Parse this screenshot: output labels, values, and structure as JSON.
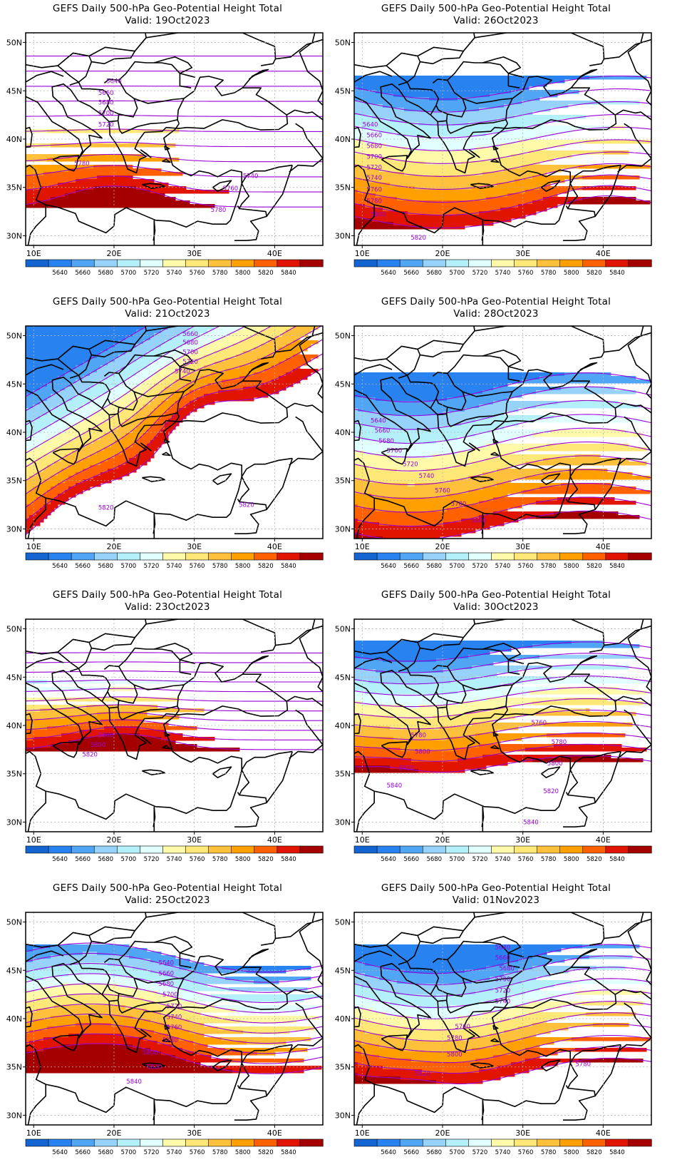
{
  "colorbar": {
    "labels": [
      "5640",
      "5660",
      "5680",
      "5700",
      "5720",
      "5740",
      "5760",
      "5780",
      "5800",
      "5820",
      "5840"
    ],
    "colors": [
      "#1464d2",
      "#2882f0",
      "#50a5f5",
      "#96d2fa",
      "#b4f0fa",
      "#e1ffff",
      "#fffaaa",
      "#ffe878",
      "#ffc03c",
      "#ffa000",
      "#ff6000",
      "#e11400",
      "#a50000"
    ]
  },
  "axes": {
    "lon_ticks": [
      "10E",
      "20E",
      "30E",
      "40E"
    ],
    "lat_ticks": [
      "50N",
      "45N",
      "40N",
      "35N",
      "30N"
    ],
    "lon_range": [
      9,
      46
    ],
    "lat_range": [
      29,
      51
    ]
  },
  "contour_color": "#9a00d8",
  "grid": "dotted",
  "panels": [
    {
      "title": "GEFS Daily 500-hPa Geo-Potential Height Total",
      "valid": "Valid: 19Oct2023",
      "field": {
        "a": 5750,
        "s": 12.8,
        "ao": 0,
        "ap": 35,
        "ax": 20,
        "b": [
          {
            "x": 20,
            "y": 29,
            "r": 7,
            "a": 60
          }
        ],
        "q": 0
      },
      "labels": [
        {
          "t": "5640",
          "lon": 20,
          "lat": 46
        },
        {
          "t": "5660",
          "lon": 19,
          "lat": 44.8
        },
        {
          "t": "5680",
          "lon": 19,
          "lat": 43.8
        },
        {
          "t": "5700",
          "lon": 19,
          "lat": 42.7
        },
        {
          "t": "5720",
          "lon": 19,
          "lat": 41.5
        },
        {
          "t": "5780",
          "lon": 16,
          "lat": 37.5
        },
        {
          "t": "5740",
          "lon": 37,
          "lat": 36.2
        },
        {
          "t": "5760",
          "lon": 34.5,
          "lat": 34.9
        },
        {
          "t": "5780",
          "lon": 33,
          "lat": 32.7
        }
      ]
    },
    {
      "title": "GEFS Daily 500-hPa Geo-Potential Height Total",
      "valid": "Valid: 26Oct2023",
      "field": {
        "a": 5720,
        "s": 15,
        "ao": 1.2,
        "ap": 6,
        "ax": 9,
        "b": [
          {
            "x": 40,
            "y": 29,
            "r": 6,
            "a": 30
          }
        ],
        "q": 0
      },
      "labels": [
        {
          "t": "5640",
          "lon": 11,
          "lat": 41.5
        },
        {
          "t": "5660",
          "lon": 11.5,
          "lat": 40.4
        },
        {
          "t": "5680",
          "lon": 11.5,
          "lat": 39.3
        },
        {
          "t": "5700",
          "lon": 11.5,
          "lat": 38.2
        },
        {
          "t": "5720",
          "lon": 11.5,
          "lat": 37.1
        },
        {
          "t": "5740",
          "lon": 11.5,
          "lat": 36
        },
        {
          "t": "5760",
          "lon": 11.5,
          "lat": 34.8
        },
        {
          "t": "5780",
          "lon": 11.5,
          "lat": 33.6
        },
        {
          "t": "5800",
          "lon": 12,
          "lat": 32.2
        },
        {
          "t": "5820",
          "lon": 17,
          "lat": 29.8
        }
      ]
    },
    {
      "title": "GEFS Daily 500-hPa Geo-Potential Height Total",
      "valid": "Valid: 21Oct2023",
      "field": {
        "a": 5690,
        "s": 13.5,
        "ao": 0,
        "ap": 30,
        "ax": 10,
        "b": [
          {
            "x": 31,
            "y": 40.5,
            "r": 6,
            "a": 50
          },
          {
            "x": 17,
            "y": 29,
            "r": 6,
            "a": 40
          },
          {
            "x": 40,
            "y": 30,
            "r": 5,
            "a": 40
          }
        ],
        "q": -2.4
      },
      "labels": [
        {
          "t": "5660",
          "lon": 29.5,
          "lat": 50.2
        },
        {
          "t": "5680",
          "lon": 29.5,
          "lat": 49.3
        },
        {
          "t": "5700",
          "lon": 29.5,
          "lat": 48.3
        },
        {
          "t": "5720",
          "lon": 29.5,
          "lat": 47.3
        },
        {
          "t": "5740",
          "lon": 28.5,
          "lat": 46.3
        },
        {
          "t": "5820",
          "lon": 19,
          "lat": 32.2
        },
        {
          "t": "5820",
          "lon": 36.5,
          "lat": 32.5
        }
      ]
    },
    {
      "title": "GEFS Daily 500-hPa Geo-Potential Height Total",
      "valid": "Valid: 28Oct2023",
      "field": {
        "a": 5705,
        "s": 14,
        "ao": 1.5,
        "ap": 8,
        "ax": 5,
        "b": [],
        "q": 0
      },
      "labels": [
        {
          "t": "5640",
          "lon": 12,
          "lat": 41.2
        },
        {
          "t": "5660",
          "lon": 12.5,
          "lat": 40.2
        },
        {
          "t": "5680",
          "lon": 13,
          "lat": 39.1
        },
        {
          "t": "5700",
          "lon": 14,
          "lat": 38.1
        },
        {
          "t": "5720",
          "lon": 16,
          "lat": 36.7
        },
        {
          "t": "5740",
          "lon": 18,
          "lat": 35.5
        },
        {
          "t": "5760",
          "lon": 20,
          "lat": 34
        },
        {
          "t": "5780",
          "lon": 22,
          "lat": 32.6
        },
        {
          "t": "5800",
          "lon": 24.5,
          "lat": 30.9
        }
      ]
    },
    {
      "title": "GEFS Daily 500-hPa Geo-Potential Height Total",
      "valid": "Valid: 23Oct2023",
      "field": {
        "a": 5790,
        "s": 20,
        "ao": 0,
        "ap": 30,
        "ax": 10,
        "b": [
          {
            "x": 21,
            "y": 33,
            "r": 7,
            "a": 70
          }
        ],
        "q": 0
      },
      "labels": [
        {
          "t": "5800",
          "lon": 19,
          "lat": 39
        },
        {
          "t": "5800",
          "lon": 18,
          "lat": 38
        },
        {
          "t": "5820",
          "lon": 17,
          "lat": 37
        }
      ]
    },
    {
      "title": "GEFS Daily 500-hPa Geo-Potential Height Total",
      "valid": "Valid: 30Oct2023",
      "field": {
        "a": 5770,
        "s": 17,
        "ao": 1,
        "ap": 6,
        "ax": 5,
        "b": [
          {
            "x": 13,
            "y": 31,
            "r": 5,
            "a": 30
          }
        ],
        "q": 0
      },
      "labels": [
        {
          "t": "5760",
          "lon": 32,
          "lat": 40.3
        },
        {
          "t": "5780",
          "lon": 17,
          "lat": 39
        },
        {
          "t": "5780",
          "lon": 34.5,
          "lat": 38.3
        },
        {
          "t": "5800",
          "lon": 17.5,
          "lat": 37.3
        },
        {
          "t": "5800",
          "lon": 34,
          "lat": 36.1
        },
        {
          "t": "5820",
          "lon": 15.5,
          "lat": 35.6
        },
        {
          "t": "5820",
          "lon": 33.5,
          "lat": 33.2
        },
        {
          "t": "5840",
          "lon": 14,
          "lat": 33.8
        },
        {
          "t": "5840",
          "lon": 31,
          "lat": 30
        }
      ]
    },
    {
      "title": "GEFS Daily 500-hPa Geo-Potential Height Total",
      "valid": "Valid: 25Oct2023",
      "field": {
        "a": 5760,
        "s": 19,
        "ao": 1.5,
        "ap": -8,
        "ax": 28,
        "b": [
          {
            "x": 22,
            "y": 30,
            "r": 6,
            "a": 20
          }
        ],
        "q": 0
      },
      "labels": [
        {
          "t": "5640",
          "lon": 26.5,
          "lat": 45.8
        },
        {
          "t": "5660",
          "lon": 26.5,
          "lat": 44.7
        },
        {
          "t": "5680",
          "lon": 26.5,
          "lat": 43.6
        },
        {
          "t": "5700",
          "lon": 27,
          "lat": 42.5
        },
        {
          "t": "5720",
          "lon": 27.5,
          "lat": 41.3
        },
        {
          "t": "5740",
          "lon": 27.5,
          "lat": 40.2
        },
        {
          "t": "5760",
          "lon": 27.5,
          "lat": 39.1
        },
        {
          "t": "5780",
          "lon": 27,
          "lat": 37.8
        },
        {
          "t": "5800",
          "lon": 24.5,
          "lat": 36.5
        },
        {
          "t": "5820",
          "lon": 25,
          "lat": 35
        },
        {
          "t": "5840",
          "lon": 22.5,
          "lat": 33.5
        }
      ]
    },
    {
      "title": "GEFS Daily 500-hPa Geo-Potential Height Total",
      "valid": "Valid: 01Nov2023",
      "field": {
        "a": 5745,
        "s": 17,
        "ao": -1.5,
        "ap": -6,
        "ax": 30,
        "b": [
          {
            "x": 16,
            "y": 29,
            "r": 5,
            "a": 30
          }
        ],
        "q": 0
      },
      "labels": [
        {
          "t": "5640",
          "lon": 27.5,
          "lat": 47.4
        },
        {
          "t": "5660",
          "lon": 27.5,
          "lat": 46.3
        },
        {
          "t": "5680",
          "lon": 28,
          "lat": 45.2
        },
        {
          "t": "5700",
          "lon": 27.5,
          "lat": 44.1
        },
        {
          "t": "5720",
          "lon": 27.5,
          "lat": 42.9
        },
        {
          "t": "5740",
          "lon": 27.5,
          "lat": 41.8
        },
        {
          "t": "5760",
          "lon": 22.5,
          "lat": 39.2
        },
        {
          "t": "5780",
          "lon": 21.5,
          "lat": 38
        },
        {
          "t": "5800",
          "lon": 21.5,
          "lat": 36.3
        },
        {
          "t": "5780",
          "lon": 37.5,
          "lat": 35.3
        },
        {
          "t": "5820",
          "lon": 17.5,
          "lat": 34.3
        }
      ]
    }
  ]
}
